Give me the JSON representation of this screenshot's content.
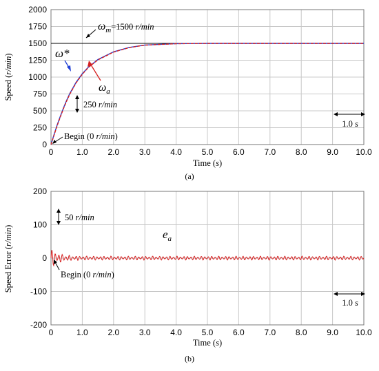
{
  "chart_data": [
    {
      "type": "line",
      "panel_label": "(a)",
      "xlabel": "Time (s)",
      "ylabel": "Speed (r/min)",
      "xlim": [
        0,
        10
      ],
      "ylim": [
        0,
        2000
      ],
      "xticks": [
        "0",
        "1.0",
        "2.0",
        "3.0",
        "4.0",
        "5.0",
        "6.0",
        "7.0",
        "8.0",
        "9.0",
        "10.0"
      ],
      "yticks": [
        "0",
        "250",
        "500",
        "750",
        "1000",
        "1250",
        "1500",
        "1750",
        "2000"
      ],
      "grid": true,
      "series": [
        {
          "name": "ω*",
          "color": "#1f3fd6",
          "x": [
            0,
            0.1,
            0.2,
            0.3,
            0.4,
            0.5,
            0.6,
            0.8,
            1.0,
            1.2,
            1.5,
            2.0,
            2.5,
            3.0,
            4.0,
            5.0,
            6.0,
            7.0,
            8.0,
            9.0,
            10.0
          ],
          "y": [
            0,
            150,
            295,
            420,
            545,
            655,
            755,
            920,
            1050,
            1150,
            1260,
            1375,
            1440,
            1475,
            1496,
            1500,
            1500,
            1500,
            1500,
            1500,
            1500
          ]
        },
        {
          "name": "ωa",
          "color": "#d62020",
          "x": [
            0,
            0.1,
            0.2,
            0.3,
            0.4,
            0.5,
            0.6,
            0.8,
            1.0,
            1.2,
            1.5,
            2.0,
            2.5,
            3.0,
            4.0,
            5.0,
            6.0,
            7.0,
            8.0,
            9.0,
            10.0
          ],
          "y": [
            0,
            140,
            285,
            410,
            535,
            645,
            745,
            912,
            1042,
            1145,
            1255,
            1370,
            1437,
            1473,
            1495,
            1500,
            1500,
            1500,
            1500,
            1500,
            1500
          ]
        }
      ],
      "reference_line": {
        "y": 1500,
        "color": "#000000"
      },
      "annotations": {
        "omega_m_symbol": "ω",
        "omega_m_subscript": "m",
        "omega_m_value": "=1500",
        "omega_m_unit": "r/min",
        "omega_star_symbol": "ω*",
        "omega_a_symbol": "ω",
        "omega_a_subscript": "a",
        "scale_value": "250",
        "scale_unit": "r/min",
        "begin_label": "Begin (0",
        "begin_unit": "r/min",
        "begin_close": ")",
        "time_scale_value": "1.0",
        "time_scale_unit": "s"
      }
    },
    {
      "type": "line",
      "panel_label": "(b)",
      "xlabel": "Time (s)",
      "ylabel": "Speed Error (r/min)",
      "xlim": [
        0,
        10
      ],
      "ylim": [
        -200,
        200
      ],
      "xticks": [
        "0",
        "1.0",
        "2.0",
        "3.0",
        "4.0",
        "5.0",
        "6.0",
        "7.0",
        "8.0",
        "9.0",
        "10.0"
      ],
      "yticks": [
        "-200",
        "-100",
        "0",
        "100",
        "200"
      ],
      "grid": true,
      "series": [
        {
          "name": "ea",
          "color": "#d62020",
          "description_of_signal": "oscillation around 0",
          "initial_amplitude": 30,
          "steady_amplitude": 6
        }
      ],
      "annotations": {
        "e_symbol": "e",
        "e_subscript": "a",
        "scale_value": "50",
        "scale_unit": "r/min",
        "begin_label": "Begin (0",
        "begin_unit": "r/min",
        "begin_close": ")",
        "time_scale_value": "1.0",
        "time_scale_unit": "s"
      }
    }
  ],
  "labels": {
    "a_xlabel_prefix": "Time (",
    "a_xlabel_unit": "s",
    "a_xlabel_suffix": ")",
    "a_ylabel_prefix": "Speed (",
    "a_ylabel_unit": "r/min",
    "a_ylabel_suffix": ")",
    "b_xlabel_prefix": "Time (",
    "b_xlabel_unit": "s",
    "b_xlabel_suffix": ")",
    "b_ylabel_prefix": "Speed Error  (",
    "b_ylabel_unit": "r/min",
    "b_ylabel_suffix": ")"
  }
}
